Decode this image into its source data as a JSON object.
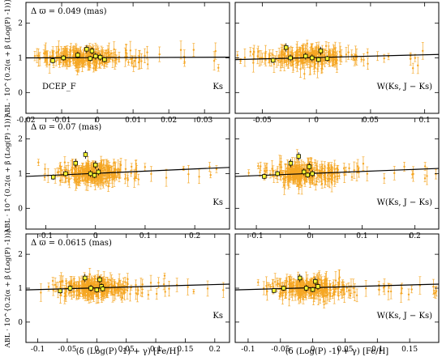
{
  "figure": {
    "ylabel_rows": [
      "ABL · 10^{0.2(α + β (Log(P) -1))}",
      "ABL · 10^{0.2(α + β (Log(P) -1))}",
      "ABL · 10^{0.2(α + β (Log(P) -1))}"
    ],
    "xlabel": "(δ (Log(P) -1) + γ) [Fe/H]",
    "row_annotations": [
      "Δ ϖ = 0.049 (mas)",
      "Δ ϖ = 0.07 (mas)",
      "Δ ϖ = 0.0615 (mas)"
    ],
    "corner_label": "DCEP_F",
    "colors": {
      "points": "#f5a623",
      "errorbars": "#f5a623",
      "highlight_fill": "#ffff33",
      "highlight_edge": "#000000",
      "fit_line": "#000000",
      "axes": "#000000"
    }
  },
  "chart_data": [
    {
      "type": "scatter",
      "panel": "row1-left",
      "band_label": "Ks",
      "xlim": [
        -0.02,
        0.037
      ],
      "ylim": [
        -0.6,
        2.6
      ],
      "xticks": [
        -0.02,
        -0.01,
        0,
        0.01,
        0.02,
        0.03
      ],
      "xtick_labels": [
        "-0.02",
        "-0.01",
        "0",
        "0.01",
        "0.02",
        "0.03"
      ],
      "fit_line": {
        "x": [
          -0.02,
          0.037
        ],
        "y": [
          1.0,
          1.02
        ]
      },
      "cloud": {
        "x_center": -0.004,
        "x_spread": 0.006,
        "y_center": 1.02,
        "y_spread": 0.12,
        "n": 240,
        "err_median": 0.15
      },
      "highlighted_points": [
        {
          "x": -0.0125,
          "y": 0.92,
          "err": 0.08
        },
        {
          "x": -0.0095,
          "y": 1.0,
          "err": 0.08
        },
        {
          "x": -0.0055,
          "y": 1.08,
          "err": 0.1
        },
        {
          "x": -0.003,
          "y": 1.25,
          "err": 0.12
        },
        {
          "x": -0.0015,
          "y": 1.2,
          "err": 0.1
        },
        {
          "x": -0.0005,
          "y": 1.05,
          "err": 0.1
        },
        {
          "x": 0.0008,
          "y": 1.02,
          "err": 0.1
        },
        {
          "x": 0.002,
          "y": 0.95,
          "err": 0.08
        },
        {
          "x": -0.002,
          "y": 0.98,
          "err": 0.08
        }
      ]
    },
    {
      "type": "scatter",
      "panel": "row1-right",
      "band_label": "W(Ks, J − Ks)",
      "xlim": [
        -0.075,
        0.113
      ],
      "ylim": [
        -0.6,
        2.6
      ],
      "xticks": [
        -0.05,
        0,
        0.05,
        0.1
      ],
      "xtick_labels": [
        "-0.05",
        "0",
        "0.05",
        "0.1"
      ],
      "fit_line": {
        "x": [
          -0.075,
          0.113
        ],
        "y": [
          0.95,
          1.1
        ]
      },
      "cloud": {
        "x_center": -0.005,
        "x_spread": 0.022,
        "y_center": 1.02,
        "y_spread": 0.12,
        "n": 240,
        "err_median": 0.15
      },
      "highlighted_points": [
        {
          "x": -0.04,
          "y": 0.93,
          "err": 0.08
        },
        {
          "x": -0.028,
          "y": 1.3,
          "err": 0.12
        },
        {
          "x": -0.024,
          "y": 1.0,
          "err": 0.1
        },
        {
          "x": -0.01,
          "y": 1.05,
          "err": 0.1
        },
        {
          "x": -0.004,
          "y": 1.0,
          "err": 0.1
        },
        {
          "x": 0.004,
          "y": 1.2,
          "err": 0.12
        },
        {
          "x": 0.01,
          "y": 0.98,
          "err": 0.08
        },
        {
          "x": 0.002,
          "y": 0.95,
          "err": 0.08
        }
      ]
    },
    {
      "type": "scatter",
      "panel": "row2-left",
      "band_label": "Ks",
      "xlim": [
        -0.14,
        0.27
      ],
      "ylim": [
        -0.6,
        2.6
      ],
      "xticks": [
        -0.1,
        0,
        0.1,
        0.2
      ],
      "xtick_labels": [
        "-0.1",
        "0",
        "0.1",
        "0.2"
      ],
      "fit_line": {
        "x": [
          -0.14,
          0.27
        ],
        "y": [
          0.92,
          1.18
        ]
      },
      "cloud": {
        "x_center": -0.01,
        "x_spread": 0.035,
        "y_center": 1.0,
        "y_spread": 0.13,
        "n": 260,
        "err_median": 0.15
      },
      "highlighted_points": [
        {
          "x": -0.085,
          "y": 0.9,
          "err": 0.08
        },
        {
          "x": -0.06,
          "y": 1.0,
          "err": 0.08
        },
        {
          "x": -0.04,
          "y": 1.3,
          "err": 0.12
        },
        {
          "x": -0.02,
          "y": 1.55,
          "err": 0.12
        },
        {
          "x": -0.01,
          "y": 1.0,
          "err": 0.1
        },
        {
          "x": 0.0,
          "y": 1.25,
          "err": 0.12
        },
        {
          "x": 0.006,
          "y": 1.05,
          "err": 0.1
        },
        {
          "x": -0.002,
          "y": 0.95,
          "err": 0.08
        }
      ]
    },
    {
      "type": "scatter",
      "panel": "row2-right",
      "band_label": "W(Ks, J − Ks)",
      "xlim": [
        -0.14,
        0.245
      ],
      "ylim": [
        -0.6,
        2.6
      ],
      "xticks": [
        -0.1,
        0,
        0.1,
        0.2
      ],
      "xtick_labels": [
        "-0.1",
        "0",
        "0.1",
        "0.2"
      ],
      "fit_line": {
        "x": [
          -0.14,
          0.245
        ],
        "y": [
          0.92,
          1.15
        ]
      },
      "cloud": {
        "x_center": -0.01,
        "x_spread": 0.035,
        "y_center": 1.0,
        "y_spread": 0.13,
        "n": 260,
        "err_median": 0.15
      },
      "highlighted_points": [
        {
          "x": -0.085,
          "y": 0.92,
          "err": 0.08
        },
        {
          "x": -0.06,
          "y": 1.0,
          "err": 0.08
        },
        {
          "x": -0.035,
          "y": 1.3,
          "err": 0.12
        },
        {
          "x": -0.02,
          "y": 1.5,
          "err": 0.12
        },
        {
          "x": -0.01,
          "y": 1.05,
          "err": 0.1
        },
        {
          "x": 0.0,
          "y": 1.2,
          "err": 0.12
        },
        {
          "x": 0.006,
          "y": 1.0,
          "err": 0.1
        },
        {
          "x": -0.003,
          "y": 0.96,
          "err": 0.08
        }
      ]
    },
    {
      "type": "scatter",
      "panel": "row3-left",
      "band_label": "Ks",
      "xlim": [
        -0.12,
        0.225
      ],
      "ylim": [
        -0.6,
        2.6
      ],
      "xticks": [
        -0.1,
        -0.05,
        0,
        0.05,
        0.1,
        0.15,
        0.2
      ],
      "xtick_labels": [
        "-0.1",
        "-0.05",
        "0",
        "0.05",
        "0.1",
        "0.15",
        "0.2"
      ],
      "fit_line": {
        "x": [
          -0.12,
          0.225
        ],
        "y": [
          0.95,
          1.12
        ]
      },
      "cloud": {
        "x_center": -0.005,
        "x_spread": 0.03,
        "y_center": 1.0,
        "y_spread": 0.13,
        "n": 260,
        "err_median": 0.15
      },
      "highlighted_points": [
        {
          "x": -0.062,
          "y": 0.92,
          "err": 0.08
        },
        {
          "x": -0.045,
          "y": 1.0,
          "err": 0.08
        },
        {
          "x": -0.02,
          "y": 1.3,
          "err": 0.12
        },
        {
          "x": -0.01,
          "y": 1.0,
          "err": 0.1
        },
        {
          "x": 0.005,
          "y": 1.25,
          "err": 0.12
        },
        {
          "x": 0.008,
          "y": 1.05,
          "err": 0.1
        },
        {
          "x": 0.01,
          "y": 0.98,
          "err": 0.08
        },
        {
          "x": 0.0,
          "y": 0.95,
          "err": 0.08
        }
      ]
    },
    {
      "type": "scatter",
      "panel": "row3-right",
      "band_label": "W(Ks, J − Ks)",
      "xlim": [
        -0.12,
        0.195
      ],
      "ylim": [
        -0.6,
        2.6
      ],
      "xticks": [
        -0.1,
        -0.05,
        0,
        0.05,
        0.1,
        0.15
      ],
      "xtick_labels": [
        "-0.1",
        "-0.05",
        "0",
        "0.05",
        "0.1",
        "0.15"
      ],
      "fit_line": {
        "x": [
          -0.12,
          0.195
        ],
        "y": [
          0.95,
          1.12
        ]
      },
      "cloud": {
        "x_center": -0.005,
        "x_spread": 0.03,
        "y_center": 1.0,
        "y_spread": 0.13,
        "n": 260,
        "err_median": 0.15
      },
      "highlighted_points": [
        {
          "x": -0.06,
          "y": 0.93,
          "err": 0.08
        },
        {
          "x": -0.045,
          "y": 1.0,
          "err": 0.08
        },
        {
          "x": -0.02,
          "y": 1.3,
          "err": 0.12
        },
        {
          "x": -0.01,
          "y": 1.0,
          "err": 0.1
        },
        {
          "x": 0.004,
          "y": 1.2,
          "err": 0.12
        },
        {
          "x": 0.008,
          "y": 1.05,
          "err": 0.1
        },
        {
          "x": 0.0,
          "y": 0.96,
          "err": 0.08
        }
      ]
    }
  ]
}
